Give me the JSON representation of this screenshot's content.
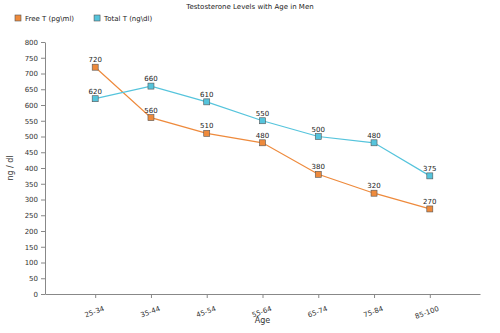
{
  "chart_data": {
    "type": "line",
    "title": "Testosterone Levels with Age in Men",
    "x_label": "Age",
    "y_label": "ng / dl",
    "categories": [
      "25-34",
      "35-44",
      "45-54",
      "55-64",
      "65-74",
      "75-84",
      "85-100"
    ],
    "series": [
      {
        "name": "Free T (pg\\ml)",
        "color": "#ee8a3c",
        "marker": "square",
        "values": [
          720,
          560,
          510,
          480,
          380,
          320,
          270
        ]
      },
      {
        "name": "Total T (ng\\dl)",
        "color": "#55c4dc",
        "marker": "square",
        "values": [
          620,
          660,
          610,
          550,
          500,
          480,
          375
        ]
      }
    ],
    "ylim": [
      0,
      800
    ],
    "yticks": [
      0,
      50,
      100,
      150,
      200,
      250,
      300,
      350,
      400,
      450,
      500,
      550,
      600,
      650,
      700,
      750,
      800
    ],
    "grid": false,
    "legend": "top-left",
    "data_labels": true
  }
}
